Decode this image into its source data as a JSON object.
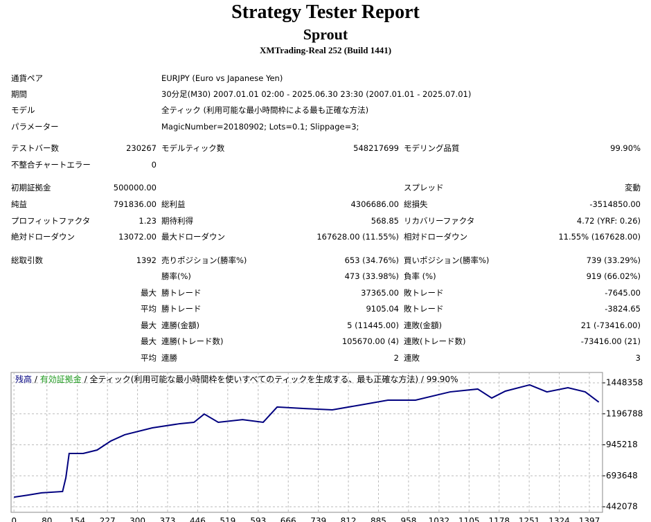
{
  "header": {
    "title": "Strategy Tester Report",
    "subtitle": "Sprout",
    "build": "XMTrading-Real 252 (Build 1441)"
  },
  "info": [
    [
      "通貨ペア",
      "EURJPY (Euro vs Japanese Yen)"
    ],
    [
      "期間",
      "30分足(M30) 2007.01.01 02:00 - 2025.06.30 23:30 (2007.01.01 - 2025.07.01)"
    ],
    [
      "モデル",
      "全ティック (利用可能な最小時間枠による最も正確な方法)"
    ],
    [
      "パラメーター",
      "MagicNumber=20180902; Lots=0.1; Slippage=3;"
    ]
  ],
  "stats": [
    [
      "テストバー数",
      "230267",
      "モデルティック数",
      "548217699",
      "モデリング品質",
      "99.90%"
    ],
    [
      "不整合チャートエラー",
      "0",
      null,
      null,
      null,
      null
    ],
    [
      "初期証拠金",
      "500000.00",
      null,
      null,
      "スプレッド",
      "変動"
    ],
    [
      "純益",
      "791836.00",
      "総利益",
      "4306686.00",
      "総損失",
      "-3514850.00"
    ],
    [
      "プロフィットファクタ",
      "1.23",
      "期待利得",
      "568.85",
      "リカバリーファクタ",
      "4.72 (YRF: 0.26)"
    ],
    [
      "絶対ドローダウン",
      "13072.00",
      "最大ドローダウン",
      "167628.00 (11.55%)",
      "相対ドローダウン",
      "11.55% (167628.00)"
    ],
    [
      "総取引数",
      "1392",
      "売りポジション(勝率%)",
      "653 (34.76%)",
      "買いポジション(勝率%)",
      "739 (33.29%)"
    ],
    [
      null,
      null,
      "勝率(%)",
      "473 (33.98%)",
      "負率 (%)",
      "919 (66.02%)"
    ],
    [
      null,
      "最大",
      "勝トレード",
      "37365.00",
      "敗トレード",
      "-7645.00"
    ],
    [
      null,
      "平均",
      "勝トレード",
      "9105.04",
      "敗トレード",
      "-3824.65"
    ],
    [
      null,
      "最大",
      "連勝(金額)",
      "5 (11445.00)",
      "連敗(金額)",
      "21 (-73416.00)"
    ],
    [
      null,
      "最大",
      "連勝(トレード数)",
      "105670.00 (4)",
      "連敗(トレード数)",
      "-73416.00 (21)"
    ],
    [
      null,
      "平均",
      "連勝",
      "2",
      "連敗",
      "3"
    ]
  ],
  "chart_data": {
    "type": "line",
    "separator": "/",
    "equity_label": "有効証拠金",
    "equity_color": "#1f9a1f",
    "caption": "全ティック(利用可能な最小時間枠を使いすべてのティックを生成する、最も正確な方法) / 99.90%",
    "x": [
      0,
      34,
      67,
      118,
      126,
      134,
      168,
      202,
      235,
      269,
      336,
      403,
      437,
      462,
      496,
      555,
      605,
      639,
      706,
      773,
      840,
      908,
      975,
      1059,
      1126,
      1160,
      1193,
      1252,
      1294,
      1345,
      1387,
      1420
    ],
    "series": [
      {
        "name": "残高",
        "color": "#00007f",
        "values": [
          520000,
          537000,
          555000,
          566000,
          678000,
          875000,
          875000,
          903000,
          976000,
          1027000,
          1083000,
          1117000,
          1128000,
          1195000,
          1128000,
          1150000,
          1128000,
          1252000,
          1240000,
          1229000,
          1268000,
          1308000,
          1308000,
          1375000,
          1398000,
          1325000,
          1381000,
          1432000,
          1375000,
          1409000,
          1375000,
          1292000
        ]
      }
    ],
    "xlim": [
      -7,
      1429
    ],
    "xticks": [
      0,
      80,
      154,
      227,
      300,
      373,
      446,
      519,
      593,
      666,
      739,
      812,
      885,
      958,
      1032,
      1105,
      1178,
      1251,
      1324,
      1397
    ],
    "ylim": [
      397100,
      1532700
    ],
    "yticks": [
      442078,
      693648,
      945218,
      1196788,
      1448358
    ],
    "grid": true
  }
}
